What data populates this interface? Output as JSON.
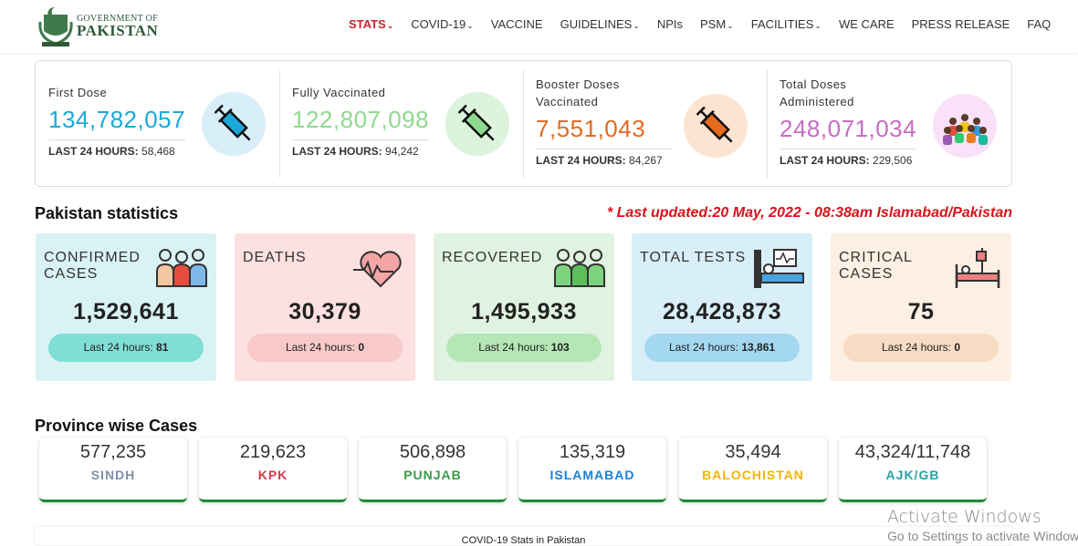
{
  "header": {
    "logo_line1": "GOVERNMENT OF",
    "logo_line2": "PAKISTAN",
    "nav": [
      "STATS",
      "COVID-19",
      "VACCINE",
      "GUIDELINES",
      "NPIs",
      "PSM",
      "FACILITIES",
      "WE CARE",
      "PRESS RELEASE",
      "FAQ"
    ]
  },
  "vaccination": [
    {
      "label": "First Dose",
      "value": "134,782,057",
      "last_label": "LAST 24 HOURS:",
      "last_value": "58,468"
    },
    {
      "label": "Fully Vaccinated",
      "value": "122,807,098",
      "last_label": "LAST 24 HOURS:",
      "last_value": "94,242"
    },
    {
      "label": "Booster Doses Vaccinated",
      "value": "7,551,043",
      "last_label": "LAST 24 HOURS:",
      "last_value": "84,267"
    },
    {
      "label": "Total Doses Administered",
      "value": "248,071,034",
      "last_label": "LAST 24 HOURS:",
      "last_value": "229,506"
    }
  ],
  "statistics": {
    "title": "Pakistan statistics",
    "updated": "* Last updated:20 May, 2022 - 08:38am Islamabad/Pakistan",
    "cards": [
      {
        "label": "CONFIRMED CASES",
        "value": "1,529,641",
        "last_label": "Last 24 hours:",
        "last_value": "81"
      },
      {
        "label": "DEATHS",
        "value": "30,379",
        "last_label": "Last 24 hours:",
        "last_value": "0"
      },
      {
        "label": "RECOVERED",
        "value": "1,495,933",
        "last_label": "Last 24 hours:",
        "last_value": "103"
      },
      {
        "label": "TOTAL TESTS",
        "value": "28,428,873",
        "last_label": "Last 24 hours:",
        "last_value": "13,861"
      },
      {
        "label": "CRITICAL CASES",
        "value": "75",
        "last_label": "Last 24 hours:",
        "last_value": "0"
      }
    ]
  },
  "provinces": {
    "title": "Province wise Cases",
    "items": [
      {
        "value": "577,235",
        "name": "SINDH"
      },
      {
        "value": "219,623",
        "name": "KPK"
      },
      {
        "value": "506,898",
        "name": "PUNJAB"
      },
      {
        "value": "135,319",
        "name": "ISLAMABAD"
      },
      {
        "value": "35,494",
        "name": "BALOCHISTAN"
      },
      {
        "value": "43,324/11,748",
        "name": "AJK/GB"
      }
    ]
  },
  "footer_heading": "COVID-19 Stats in Pakistan",
  "watermark": {
    "line1": "Activate Windows",
    "line2": "Go to Settings to activate Windows."
  }
}
